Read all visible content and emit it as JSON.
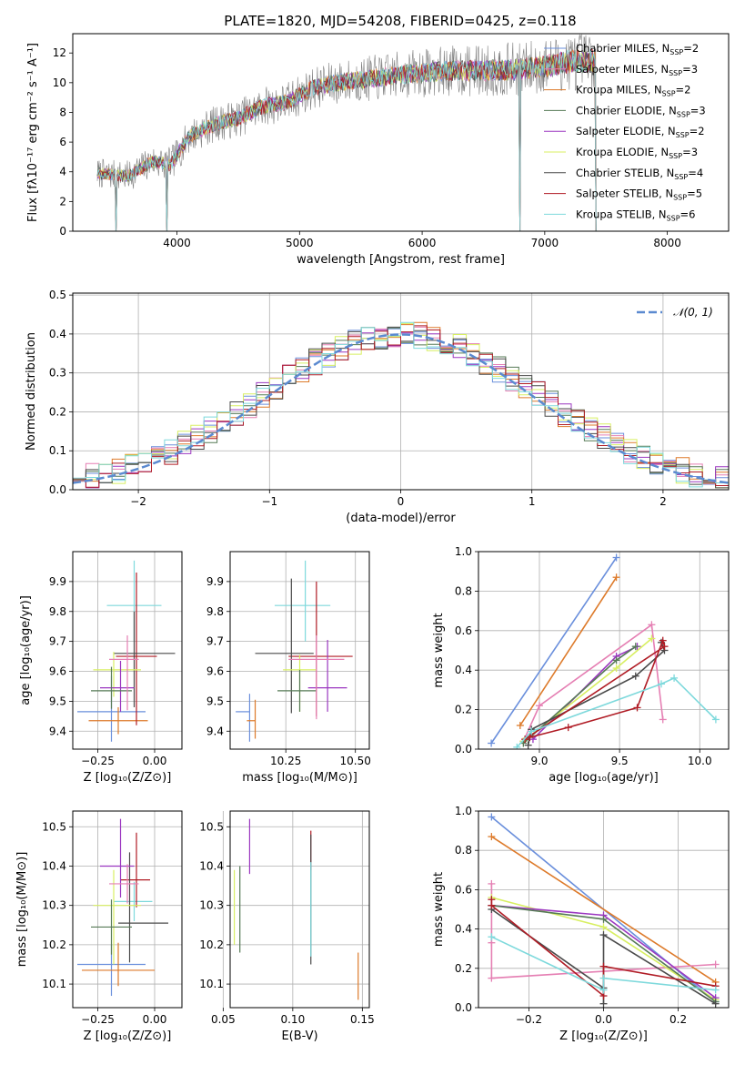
{
  "figure": {
    "title": "PLATE=1820, MJD=54208, FIBERID=0425, z=0.118"
  },
  "colors": {
    "Chabrier MILES": "#6a8fdc",
    "Salpeter MILES": "#e57fb3",
    "Kroupa MILES": "#dd7a2a",
    "Chabrier ELODIE": "#567a56",
    "Salpeter ELODIE": "#9b37c0",
    "Kroupa ELODIE": "#d8ef62",
    "Chabrier STELIB": "#4a4a4a",
    "Salpeter STELIB": "#b01c25",
    "Kroupa STELIB": "#7ed9dc",
    "normal": "#5b8ad0",
    "data": "#808080"
  },
  "chart_data": [
    {
      "id": "spectrum",
      "type": "line",
      "xlabel": "wavelength [Angstrom, rest frame]",
      "ylabel": "Flux [fλ10⁻¹⁷ erg cm⁻² s⁻¹ A⁻¹]",
      "xlim": [
        3150,
        8500
      ],
      "ylim": [
        0,
        13.3
      ],
      "xticks": [
        4000,
        5000,
        6000,
        7000,
        8000
      ],
      "yticks": [
        0,
        2,
        4,
        6,
        8,
        10,
        12
      ],
      "grid": false,
      "legend_position": "right",
      "legend": [
        {
          "label": "Chabrier MILES, N",
          "sub": "SSP",
          "n": "=2",
          "model": "Chabrier MILES"
        },
        {
          "label": "Salpeter MILES, N",
          "sub": "SSP",
          "n": "=3",
          "model": "Salpeter MILES"
        },
        {
          "label": "Kroupa MILES, N",
          "sub": "SSP",
          "n": "=2",
          "model": "Kroupa MILES"
        },
        {
          "label": "Chabrier ELODIE, N",
          "sub": "SSP",
          "n": "=3",
          "model": "Chabrier ELODIE"
        },
        {
          "label": "Salpeter ELODIE, N",
          "sub": "SSP",
          "n": "=2",
          "model": "Salpeter ELODIE"
        },
        {
          "label": "Kroupa ELODIE, N",
          "sub": "SSP",
          "n": "=3",
          "model": "Kroupa ELODIE"
        },
        {
          "label": "Chabrier STELIB, N",
          "sub": "SSP",
          "n": "=4",
          "model": "Chabrier STELIB"
        },
        {
          "label": "Salpeter STELIB, N",
          "sub": "SSP",
          "n": "=5",
          "model": "Salpeter STELIB"
        },
        {
          "label": "Kroupa STELIB, N",
          "sub": "SSP",
          "n": "=6",
          "model": "Kroupa STELIB"
        }
      ],
      "continuum": [
        [
          3350,
          3.9
        ],
        [
          3600,
          3.7
        ],
        [
          3800,
          4.7
        ],
        [
          3950,
          4.5
        ],
        [
          4100,
          6.4
        ],
        [
          4300,
          7.2
        ],
        [
          4500,
          7.6
        ],
        [
          4700,
          8.4
        ],
        [
          4900,
          8.7
        ],
        [
          5100,
          9.6
        ],
        [
          5300,
          10.0
        ],
        [
          5600,
          10.3
        ],
        [
          5900,
          10.6
        ],
        [
          6200,
          10.8
        ],
        [
          6500,
          10.8
        ],
        [
          6800,
          10.9
        ],
        [
          7000,
          11.1
        ],
        [
          7200,
          11.4
        ],
        [
          7400,
          11.5
        ]
      ],
      "drops": [
        [
          3500,
          0.0
        ],
        [
          3920,
          0.0
        ],
        [
          6800,
          0.0
        ],
        [
          7420,
          0.0
        ]
      ]
    },
    {
      "id": "residuals",
      "type": "histogram",
      "xlabel": "(data-model)/error",
      "ylabel": "Normed distribution",
      "xlim": [
        -2.5,
        2.5
      ],
      "ylim": [
        0,
        0.505
      ],
      "xticks": [
        -2,
        -1,
        0,
        1,
        2
      ],
      "yticks": [
        0.0,
        0.1,
        0.2,
        0.3,
        0.4,
        0.5
      ],
      "grid": true,
      "legend_position": "top-right",
      "legend_label": "𝒩(0, 1)",
      "bin_width": 0.1,
      "bin_start": -2.5
    },
    {
      "id": "age_vs_Z",
      "type": "errorbar",
      "xlabel": "Z [log₁₀(Z/Z⊙)]",
      "ylabel": "age  [log₁₀(age/yr)]",
      "xlim": [
        -0.36,
        0.12
      ],
      "ylim": [
        9.34,
        10.0
      ],
      "xticks": [
        -0.25,
        0.0
      ],
      "xticklabels": [
        "−0.25",
        "0.00"
      ],
      "yticks": [
        9.4,
        9.5,
        9.6,
        9.7,
        9.8,
        9.9
      ],
      "grid": true,
      "points": [
        {
          "model": "Chabrier MILES",
          "x": -0.19,
          "xerr": [
            0.15,
            0.15
          ],
          "y": 9.465,
          "yerr": [
            0.1,
            0.12
          ]
        },
        {
          "model": "Kroupa MILES",
          "x": -0.16,
          "xerr": [
            0.13,
            0.13
          ],
          "y": 9.435,
          "yerr": [
            0.045,
            0.045
          ]
        },
        {
          "model": "Kroupa STELIB",
          "x": -0.09,
          "xerr": [
            0.12,
            0.12
          ],
          "y": 9.82,
          "yerr": [
            0.12,
            0.15
          ]
        },
        {
          "model": "Salpeter STELIB",
          "x": -0.08,
          "xerr": [
            0.09,
            0.09
          ],
          "y": 9.65,
          "yerr": [
            0.23,
            0.28
          ]
        },
        {
          "model": "Chabrier STELIB",
          "x": -0.09,
          "xerr": [
            0.09,
            0.18
          ],
          "y": 9.66,
          "yerr": [
            0.18,
            0.14
          ]
        },
        {
          "model": "Kroupa ELODIE",
          "x": -0.18,
          "xerr": [
            0.09,
            0.12
          ],
          "y": 9.605,
          "yerr": [
            0.09,
            0.06
          ]
        },
        {
          "model": "Salpeter ELODIE",
          "x": -0.15,
          "xerr": [
            0.09,
            0.06
          ],
          "y": 9.545,
          "yerr": [
            0.08,
            0.09
          ]
        },
        {
          "model": "Chabrier ELODIE",
          "x": -0.19,
          "xerr": [
            0.09,
            0.09
          ],
          "y": 9.535,
          "yerr": [
            0.06,
            0.08
          ]
        },
        {
          "model": "Salpeter MILES",
          "x": -0.12,
          "xerr": [
            0.08,
            0.05
          ],
          "y": 9.64,
          "yerr": [
            0.17,
            0.08
          ]
        }
      ]
    },
    {
      "id": "age_vs_mass",
      "type": "errorbar",
      "xlabel": "mass [log₁₀(M/M⊙)]",
      "ylabel": "",
      "xlim": [
        10.05,
        10.55
      ],
      "ylim": [
        9.34,
        10.0
      ],
      "xticks": [
        10.25,
        10.5
      ],
      "xticklabels": [
        "10.25",
        "10.50"
      ],
      "yticks": [
        9.4,
        9.5,
        9.6,
        9.7,
        9.8,
        9.9
      ],
      "grid": true,
      "points": [
        {
          "model": "Chabrier MILES",
          "x": 10.12,
          "xerr": [
            0.05,
            0.0
          ],
          "y": 9.465,
          "yerr": [
            0.1,
            0.06
          ]
        },
        {
          "model": "Kroupa MILES",
          "x": 10.14,
          "xerr": [
            0.03,
            0.0
          ],
          "y": 9.435,
          "yerr": [
            0.06,
            0.07
          ]
        },
        {
          "model": "Kroupa STELIB",
          "x": 10.32,
          "xerr": [
            0.11,
            0.09
          ],
          "y": 9.82,
          "yerr": [
            0.12,
            0.15
          ]
        },
        {
          "model": "Salpeter STELIB",
          "x": 10.36,
          "xerr": [
            0.1,
            0.13
          ],
          "y": 9.65,
          "yerr": [
            0.2,
            0.25
          ]
        },
        {
          "model": "Chabrier STELIB",
          "x": 10.27,
          "xerr": [
            0.13,
            0.08
          ],
          "y": 9.66,
          "yerr": [
            0.2,
            0.25
          ]
        },
        {
          "model": "Kroupa ELODIE",
          "x": 10.3,
          "xerr": [
            0.06,
            0.06
          ],
          "y": 9.605,
          "yerr": [
            0.14,
            0.05
          ]
        },
        {
          "model": "Salpeter ELODIE",
          "x": 10.4,
          "xerr": [
            0.07,
            0.07
          ],
          "y": 9.545,
          "yerr": [
            0.08,
            0.16
          ]
        },
        {
          "model": "Chabrier ELODIE",
          "x": 10.3,
          "xerr": [
            0.08,
            0.06
          ],
          "y": 9.535,
          "yerr": [
            0.07,
            0.07
          ]
        },
        {
          "model": "Salpeter MILES",
          "x": 10.36,
          "xerr": [
            0.1,
            0.1
          ],
          "y": 9.64,
          "yerr": [
            0.2,
            0.08
          ]
        }
      ]
    },
    {
      "id": "weight_vs_age",
      "type": "line",
      "xlabel": "age  [log₁₀(age/yr)]",
      "ylabel": "mass weight",
      "xlim": [
        8.62,
        10.18
      ],
      "ylim": [
        0,
        1.0
      ],
      "xticks": [
        9.0,
        9.5,
        10.0
      ],
      "yticks": [
        0.0,
        0.2,
        0.4,
        0.6,
        0.8,
        1.0
      ],
      "grid": true,
      "series": [
        {
          "model": "Chabrier MILES",
          "x": [
            8.7,
            9.48
          ],
          "y": [
            0.03,
            0.97
          ]
        },
        {
          "model": "Kroupa MILES",
          "x": [
            8.88,
            9.48
          ],
          "y": [
            0.12,
            0.87
          ]
        },
        {
          "model": "Salpeter MILES",
          "x": [
            8.9,
            9.0,
            9.7,
            9.77
          ],
          "y": [
            0.04,
            0.22,
            0.63,
            0.15
          ]
        },
        {
          "model": "Salpeter ELODIE",
          "x": [
            8.96,
            9.48,
            9.61
          ],
          "y": [
            0.05,
            0.47,
            0.52
          ]
        },
        {
          "model": "Kroupa ELODIE",
          "x": [
            8.9,
            9.48,
            9.7
          ],
          "y": [
            0.04,
            0.41,
            0.56
          ]
        },
        {
          "model": "Chabrier ELODIE",
          "x": [
            8.9,
            9.48,
            9.6
          ],
          "y": [
            0.03,
            0.45,
            0.52
          ]
        },
        {
          "model": "Chabrier STELIB",
          "x": [
            8.93,
            8.95,
            9.6,
            9.78,
            9.76
          ],
          "y": [
            0.02,
            0.1,
            0.37,
            0.5,
            0.54
          ]
        },
        {
          "model": "Salpeter STELIB",
          "x": [
            8.94,
            9.18,
            9.61,
            9.77,
            9.78,
            8.91
          ],
          "y": [
            0.06,
            0.11,
            0.21,
            0.55,
            0.52,
            0.05
          ]
        },
        {
          "model": "Kroupa STELIB",
          "x": [
            8.86,
            8.95,
            9.76,
            9.84,
            10.1
          ],
          "y": [
            0.01,
            0.09,
            0.33,
            0.36,
            0.15
          ]
        }
      ]
    },
    {
      "id": "mass_vs_Z",
      "type": "errorbar",
      "xlabel": "Z [log₁₀(Z/Z⊙)]",
      "ylabel": "mass [log₁₀(M/M⊙)]",
      "xlim": [
        -0.36,
        0.12
      ],
      "ylim": [
        10.04,
        10.54
      ],
      "xticks": [
        -0.25,
        0.0
      ],
      "xticklabels": [
        "−0.25",
        "0.00"
      ],
      "yticks": [
        10.1,
        10.2,
        10.3,
        10.4,
        10.5
      ],
      "grid": true,
      "points": [
        {
          "model": "Chabrier MILES",
          "x": -0.19,
          "xerr": [
            0.15,
            0.15
          ],
          "y": 10.15,
          "yerr": [
            0.08,
            0.05
          ]
        },
        {
          "model": "Kroupa MILES",
          "x": -0.16,
          "xerr": [
            0.16,
            0.16
          ],
          "y": 10.135,
          "yerr": [
            0.04,
            0.07
          ]
        },
        {
          "model": "Kroupa STELIB",
          "x": -0.09,
          "xerr": [
            0.09,
            0.08
          ],
          "y": 10.31,
          "yerr": [
            0.05,
            0.05
          ]
        },
        {
          "model": "Salpeter STELIB",
          "x": -0.08,
          "xerr": [
            0.07,
            0.06
          ],
          "y": 10.365,
          "yerr": [
            0.07,
            0.12
          ]
        },
        {
          "model": "Chabrier STELIB",
          "x": -0.11,
          "xerr": [
            0.05,
            0.17
          ],
          "y": 10.255,
          "yerr": [
            0.1,
            0.18
          ]
        },
        {
          "model": "Kroupa ELODIE",
          "x": -0.18,
          "xerr": [
            0.09,
            0.12
          ],
          "y": 10.3,
          "yerr": [
            0.15,
            0.09
          ]
        },
        {
          "model": "Salpeter ELODIE",
          "x": -0.15,
          "xerr": [
            0.09,
            0.06
          ],
          "y": 10.4,
          "yerr": [
            0.08,
            0.12
          ]
        },
        {
          "model": "Chabrier ELODIE",
          "x": -0.19,
          "xerr": [
            0.09,
            0.09
          ],
          "y": 10.245,
          "yerr": [
            0.07,
            0.07
          ]
        },
        {
          "model": "Salpeter MILES",
          "x": -0.12,
          "xerr": [
            0.08,
            0.05
          ],
          "y": 10.355,
          "yerr": [
            0.05,
            0.05
          ]
        }
      ]
    },
    {
      "id": "mass_vs_ebv",
      "type": "errorbar",
      "xlabel": "E(B-V)",
      "ylabel": "",
      "xlim": [
        0.055,
        0.155
      ],
      "ylim": [
        10.04,
        10.54
      ],
      "xticks": [
        0.05,
        0.1,
        0.15
      ],
      "xticklabels": [
        "0.05",
        "0.10",
        "0.15"
      ],
      "yticks": [
        10.1,
        10.2,
        10.3,
        10.4,
        10.5
      ],
      "grid": true,
      "points": [
        {
          "model": "Kroupa ELODIE",
          "x": 0.058,
          "xerr": [
            0,
            0
          ],
          "y": 10.3,
          "yerr": [
            0.1,
            0.09
          ]
        },
        {
          "model": "Chabrier ELODIE",
          "x": 0.062,
          "xerr": [
            0,
            0
          ],
          "y": 10.3,
          "yerr": [
            0.12,
            0.1
          ]
        },
        {
          "model": "Salpeter ELODIE",
          "x": 0.069,
          "xerr": [
            0,
            0
          ],
          "y": 10.43,
          "yerr": [
            0.05,
            0.09
          ]
        },
        {
          "model": "Salpeter STELIB",
          "x": 0.113,
          "xerr": [
            0,
            0
          ],
          "y": 10.43,
          "yerr": [
            0.04,
            0.06
          ]
        },
        {
          "model": "Chabrier STELIB",
          "x": 0.113,
          "xerr": [
            0,
            0
          ],
          "y": 10.3,
          "yerr": [
            0.15,
            0.18
          ]
        },
        {
          "model": "Kroupa STELIB",
          "x": 0.113,
          "xerr": [
            0,
            0
          ],
          "y": 10.29,
          "yerr": [
            0.12,
            0.12
          ]
        },
        {
          "model": "Kroupa MILES",
          "x": 0.147,
          "xerr": [
            0,
            0
          ],
          "y": 10.12,
          "yerr": [
            0.06,
            0.06
          ]
        }
      ]
    },
    {
      "id": "weight_vs_Z",
      "type": "line",
      "xlabel": "Z [log₁₀(Z/Z⊙)]",
      "ylabel": "mass weight",
      "xlim": [
        -0.335,
        0.335
      ],
      "ylim": [
        0,
        1.0
      ],
      "xticks": [
        -0.2,
        0.0,
        0.2
      ],
      "xticklabels": [
        "−0.2",
        "0.0",
        "0.2"
      ],
      "yticks": [
        0.0,
        0.2,
        0.4,
        0.6,
        0.8,
        1.0
      ],
      "grid": true,
      "series": [
        {
          "model": "Chabrier MILES",
          "x": [
            -0.3,
            0.3
          ],
          "y": [
            0.97,
            0.03
          ]
        },
        {
          "model": "Kroupa MILES",
          "x": [
            -0.3,
            0.3
          ],
          "y": [
            0.87,
            0.13
          ]
        },
        {
          "model": "Salpeter MILES",
          "x": [
            -0.3,
            -0.3,
            -0.3,
            0.3
          ],
          "y": [
            0.63,
            0.33,
            0.15,
            0.22
          ]
        },
        {
          "model": "Kroupa ELODIE",
          "x": [
            -0.3,
            0.0,
            0.3
          ],
          "y": [
            0.56,
            0.41,
            0.04
          ]
        },
        {
          "model": "Salpeter ELODIE",
          "x": [
            -0.3,
            0.0,
            0.3
          ],
          "y": [
            0.52,
            0.47,
            0.05
          ]
        },
        {
          "model": "Chabrier ELODIE",
          "x": [
            -0.3,
            0.0,
            0.3
          ],
          "y": [
            0.52,
            0.45,
            0.03
          ]
        },
        {
          "model": "Chabrier STELIB",
          "x": [
            -0.3,
            0.0,
            0.0,
            0.0,
            0.3
          ],
          "y": [
            0.5,
            0.1,
            0.02,
            0.37,
            0.02
          ]
        },
        {
          "model": "Salpeter STELIB",
          "x": [
            -0.3,
            -0.3,
            0.0,
            0.0,
            0.3
          ],
          "y": [
            0.55,
            0.52,
            0.06,
            0.21,
            0.11
          ]
        },
        {
          "model": "Kroupa STELIB",
          "x": [
            -0.3,
            0.0,
            0.0,
            0.3
          ],
          "y": [
            0.36,
            0.09,
            0.15,
            0.09
          ]
        }
      ]
    }
  ]
}
